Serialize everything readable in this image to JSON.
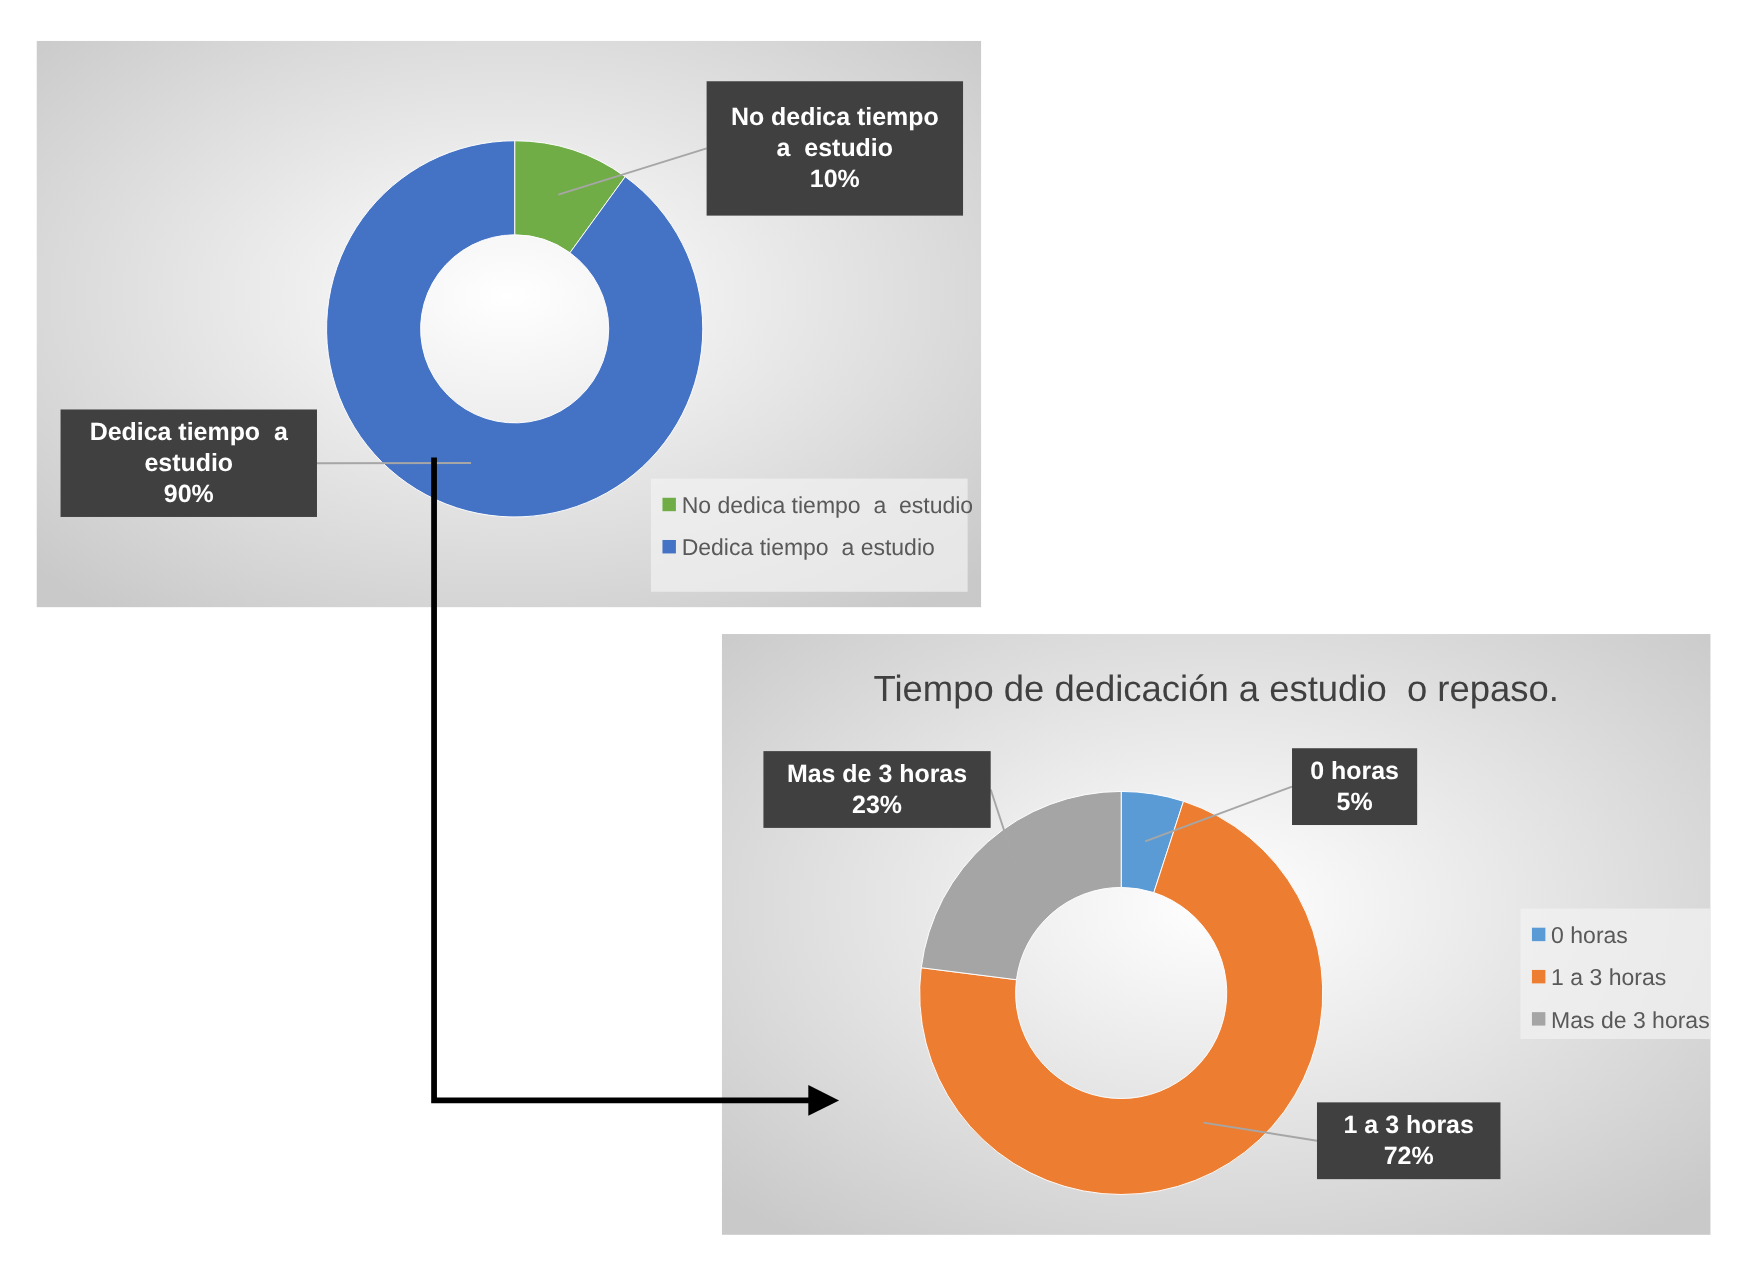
{
  "chart_data": [
    {
      "type": "donut",
      "categories": [
        "No dedica tiempo  a  estudio",
        "Dedica tiempo  a estudio"
      ],
      "values": [
        10,
        90
      ],
      "colors": [
        "#70ad47",
        "#4472c4"
      ],
      "value_labels": [
        "10%",
        "90%"
      ],
      "legend": "bottom right"
    },
    {
      "type": "donut",
      "title": "Tiempo de dedicación a estudio  o repaso.",
      "categories": [
        "0 horas",
        "1 a 3 horas",
        "Mas de 3 horas"
      ],
      "values": [
        5,
        72,
        23
      ],
      "colors": [
        "#5b9bd5",
        "#ed7d31",
        "#a5a5a5"
      ],
      "value_labels": [
        "5%",
        "72%",
        "23%"
      ],
      "legend": "right"
    }
  ]
}
